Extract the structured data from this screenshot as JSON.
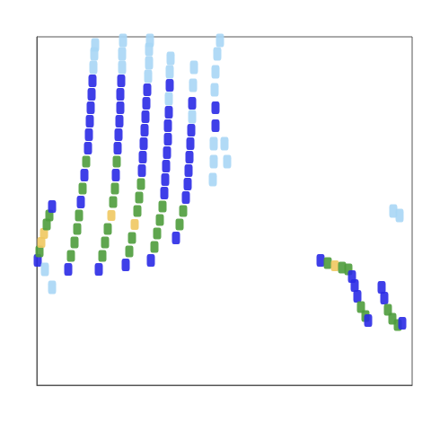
{
  "chart_data": {
    "type": "heatmap",
    "xlim": [
      0,
      418
    ],
    "ylim": [
      0,
      388
    ],
    "tick_labels": false,
    "grid": false,
    "cells": [
      [
        1,
        139,
        2
      ],
      [
        3,
        149,
        3
      ],
      [
        5,
        159,
        4
      ],
      [
        8,
        169,
        4
      ],
      [
        11,
        179,
        3
      ],
      [
        14,
        189,
        3
      ],
      [
        17,
        199,
        2
      ],
      [
        9,
        129,
        1
      ],
      [
        17,
        109,
        1
      ],
      [
        35,
        129,
        2
      ],
      [
        38,
        144,
        3
      ],
      [
        42,
        159,
        3
      ],
      [
        45,
        174,
        3
      ],
      [
        47,
        189,
        3
      ],
      [
        49,
        204,
        2
      ],
      [
        51,
        219,
        3
      ],
      [
        53,
        234,
        2
      ],
      [
        55,
        249,
        3
      ],
      [
        57,
        264,
        2
      ],
      [
        58,
        279,
        2
      ],
      [
        59,
        294,
        2
      ],
      [
        60,
        309,
        2
      ],
      [
        61,
        324,
        2
      ],
      [
        62,
        339,
        2
      ],
      [
        63,
        354,
        1
      ],
      [
        64,
        369,
        1
      ],
      [
        65,
        379,
        1
      ],
      [
        69,
        129,
        2
      ],
      [
        73,
        144,
        3
      ],
      [
        76,
        159,
        3
      ],
      [
        79,
        174,
        3
      ],
      [
        83,
        189,
        4
      ],
      [
        85,
        204,
        3
      ],
      [
        87,
        219,
        3
      ],
      [
        88,
        234,
        2
      ],
      [
        89,
        249,
        3
      ],
      [
        90,
        264,
        2
      ],
      [
        91,
        279,
        2
      ],
      [
        92,
        294,
        2
      ],
      [
        93,
        309,
        2
      ],
      [
        93,
        324,
        2
      ],
      [
        94,
        339,
        2
      ],
      [
        95,
        354,
        1
      ],
      [
        95,
        369,
        1
      ],
      [
        96,
        384,
        1
      ],
      [
        99,
        134,
        2
      ],
      [
        103,
        149,
        3
      ],
      [
        106,
        164,
        3
      ],
      [
        109,
        179,
        4
      ],
      [
        112,
        194,
        3
      ],
      [
        114,
        209,
        3
      ],
      [
        116,
        224,
        3
      ],
      [
        117,
        239,
        2
      ],
      [
        118,
        254,
        2
      ],
      [
        119,
        269,
        2
      ],
      [
        120,
        284,
        2
      ],
      [
        121,
        299,
        2
      ],
      [
        122,
        314,
        2
      ],
      [
        123,
        329,
        2
      ],
      [
        124,
        344,
        1
      ],
      [
        125,
        359,
        1
      ],
      [
        125,
        374,
        1
      ],
      [
        126,
        384,
        1
      ],
      [
        127,
        139,
        2
      ],
      [
        131,
        154,
        3
      ],
      [
        134,
        169,
        3
      ],
      [
        137,
        184,
        3
      ],
      [
        140,
        199,
        3
      ],
      [
        142,
        214,
        2
      ],
      [
        143,
        229,
        2
      ],
      [
        144,
        244,
        2
      ],
      [
        145,
        259,
        2
      ],
      [
        146,
        274,
        2
      ],
      [
        146,
        289,
        2
      ],
      [
        147,
        304,
        2
      ],
      [
        147,
        319,
        1
      ],
      [
        148,
        334,
        2
      ],
      [
        148,
        349,
        1
      ],
      [
        149,
        364,
        1
      ],
      [
        155,
        164,
        2
      ],
      [
        159,
        179,
        3
      ],
      [
        163,
        194,
        3
      ],
      [
        166,
        209,
        2
      ],
      [
        168,
        224,
        2
      ],
      [
        169,
        239,
        2
      ],
      [
        170,
        254,
        2
      ],
      [
        171,
        269,
        2
      ],
      [
        172,
        284,
        2
      ],
      [
        173,
        299,
        1
      ],
      [
        173,
        314,
        2
      ],
      [
        174,
        334,
        1
      ],
      [
        175,
        354,
        1
      ],
      [
        196,
        229,
        1
      ],
      [
        197,
        249,
        1
      ],
      [
        197,
        269,
        1
      ],
      [
        199,
        289,
        2
      ],
      [
        199,
        309,
        2
      ],
      [
        198,
        329,
        1
      ],
      [
        199,
        349,
        1
      ],
      [
        201,
        369,
        1
      ],
      [
        204,
        384,
        1
      ],
      [
        209,
        269,
        1
      ],
      [
        212,
        249,
        1
      ],
      [
        316,
        139,
        2
      ],
      [
        324,
        136,
        3
      ],
      [
        332,
        133,
        4
      ],
      [
        340,
        131,
        3
      ],
      [
        347,
        129,
        3
      ],
      [
        351,
        121,
        2
      ],
      [
        354,
        111,
        2
      ],
      [
        357,
        99,
        2
      ],
      [
        361,
        87,
        3
      ],
      [
        366,
        77,
        3
      ],
      [
        369,
        72,
        2
      ],
      [
        384,
        109,
        2
      ],
      [
        387,
        97,
        2
      ],
      [
        391,
        84,
        3
      ],
      [
        396,
        74,
        3
      ],
      [
        402,
        67,
        3
      ],
      [
        407,
        69,
        2
      ],
      [
        397,
        194,
        1
      ],
      [
        404,
        189,
        1
      ]
    ]
  }
}
